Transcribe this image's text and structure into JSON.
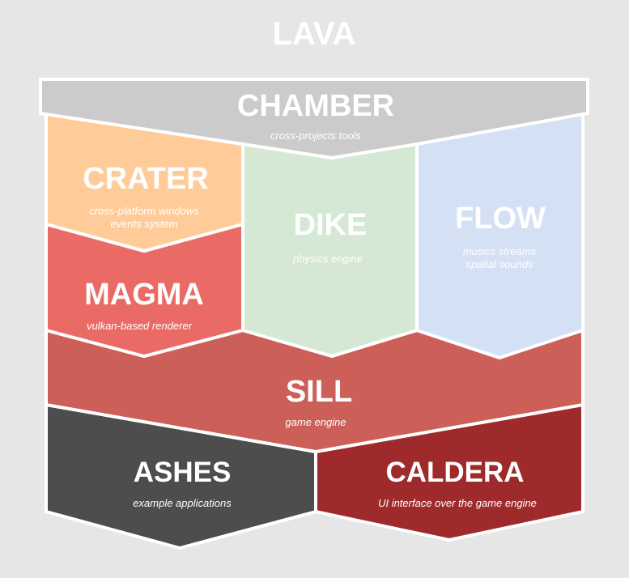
{
  "title": "LAVA",
  "colors": {
    "background": "#e6e6e6",
    "chamber": "#cbcbcb",
    "crater": "#ffcc99",
    "magma": "#ea6b66",
    "dike": "#d5e8d4",
    "flow": "#d4e1f5",
    "sill": "#cd5f59",
    "ashes": "#4d4d4d",
    "caldera": "#9e2a2b"
  },
  "blocks": {
    "chamber": {
      "name": "CHAMBER",
      "description": [
        "cross-projects tools"
      ]
    },
    "crater": {
      "name": "CRATER",
      "description": [
        "cross-platform windows",
        "events system"
      ]
    },
    "magma": {
      "name": "MAGMA",
      "description": [
        "vulkan-based renderer"
      ]
    },
    "dike": {
      "name": "DIKE",
      "description": [
        "physics engine"
      ]
    },
    "flow": {
      "name": "FLOW",
      "description": [
        "musics streams",
        "spatial sounds"
      ]
    },
    "sill": {
      "name": "SILL",
      "description": [
        "game engine"
      ]
    },
    "ashes": {
      "name": "ASHES",
      "description": [
        "example applications"
      ]
    },
    "caldera": {
      "name": "CALDERA",
      "description": [
        "UI interface over the game engine"
      ]
    }
  }
}
